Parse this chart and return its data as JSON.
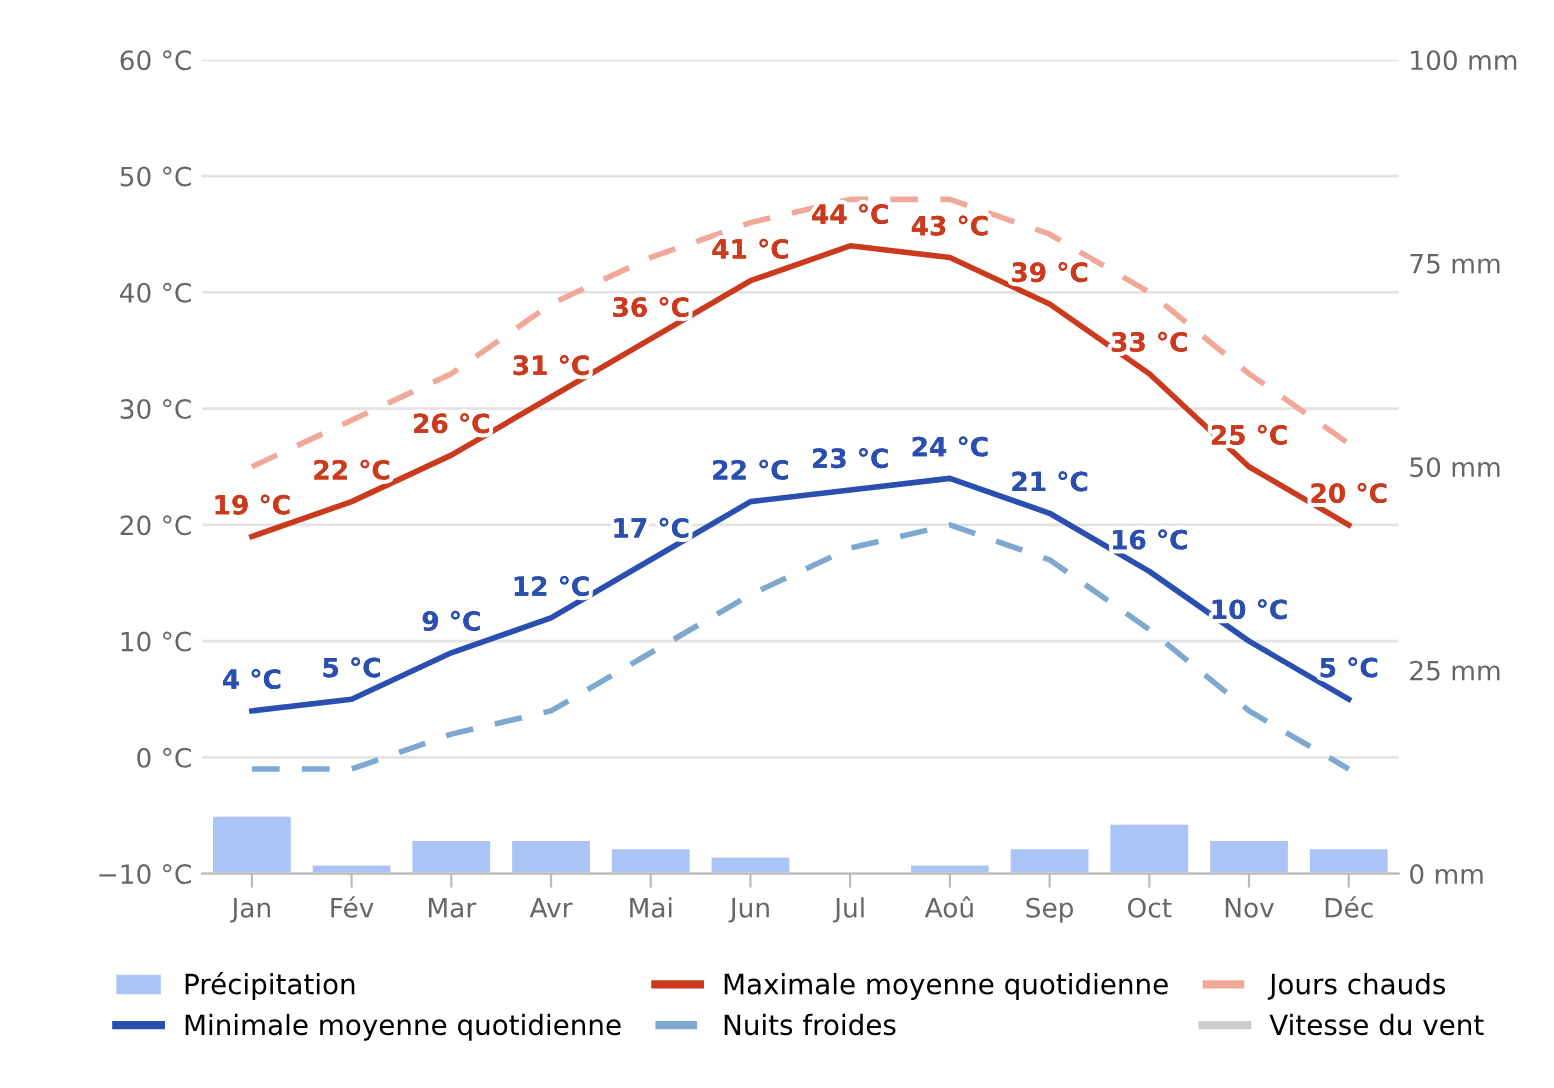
{
  "chart_data": {
    "type": "line",
    "categories": [
      "Jan",
      "Fév",
      "Mar",
      "Avr",
      "Mai",
      "Jun",
      "Jul",
      "Aoû",
      "Sep",
      "Oct",
      "Nov",
      "Déc"
    ],
    "series": [
      {
        "name": "Précipitation",
        "type": "bar",
        "axis": "y2",
        "color": "#a9c4f5",
        "values": [
          7,
          1,
          4,
          4,
          3,
          2,
          0,
          1,
          3,
          6,
          4,
          3
        ]
      },
      {
        "name": "Maximale moyenne quotidienne",
        "color": "#cc3a1e",
        "line_style": "solid",
        "values": [
          19,
          22,
          26,
          31,
          36,
          41,
          44,
          43,
          39,
          33,
          25,
          20
        ],
        "value_labels": [
          "19 °C",
          "22 °C",
          "26 °C",
          "31 °C",
          "36 °C",
          "41 °C",
          "44 °C",
          "43 °C",
          "39 °C",
          "33 °C",
          "25 °C",
          "20 °C"
        ]
      },
      {
        "name": "Jours chauds",
        "color": "#f0a898",
        "line_style": "dashed",
        "values": [
          25,
          29,
          33,
          39,
          43,
          46,
          48,
          48,
          45,
          40,
          33,
          27
        ]
      },
      {
        "name": "Minimale moyenne quotidienne",
        "color": "#2a4fb0",
        "line_style": "solid",
        "values": [
          4,
          5,
          9,
          12,
          17,
          22,
          23,
          24,
          21,
          16,
          10,
          5
        ],
        "value_labels": [
          "4 °C",
          "5 °C",
          "9 °C",
          "12 °C",
          "17 °C",
          "22 °C",
          "23 °C",
          "24 °C",
          "21 °C",
          "16 °C",
          "10 °C",
          "5 °C"
        ]
      },
      {
        "name": "Nuits froides",
        "color": "#7fa8d0",
        "line_style": "dashed",
        "values": [
          -1,
          -1,
          2,
          4,
          9,
          14,
          18,
          20,
          17,
          11,
          4,
          -1
        ]
      },
      {
        "name": "Vitesse du vent",
        "color": "#cccccc",
        "line_style": "solid",
        "values": [
          null,
          null,
          null,
          null,
          null,
          null,
          null,
          null,
          null,
          null,
          null,
          null
        ]
      }
    ],
    "ylim": [
      -10,
      60
    ],
    "yticks": [
      {
        "value": -10,
        "label": "−10 °C"
      },
      {
        "value": 0,
        "label": "0 °C"
      },
      {
        "value": 10,
        "label": "10 °C"
      },
      {
        "value": 20,
        "label": "20 °C"
      },
      {
        "value": 30,
        "label": "30 °C"
      },
      {
        "value": 40,
        "label": "40 °C"
      },
      {
        "value": 50,
        "label": "50 °C"
      },
      {
        "value": 60,
        "label": "60 °C"
      }
    ],
    "y2lim": [
      0,
      100
    ],
    "y2ticks": [
      {
        "value": 0,
        "label": "0 mm"
      },
      {
        "value": 25,
        "label": "25 mm"
      },
      {
        "value": 50,
        "label": "50 mm"
      },
      {
        "value": 75,
        "label": "75 mm"
      },
      {
        "value": 100,
        "label": "100 mm"
      }
    ],
    "grid": "y",
    "legend": "bottom",
    "marker": "none"
  }
}
